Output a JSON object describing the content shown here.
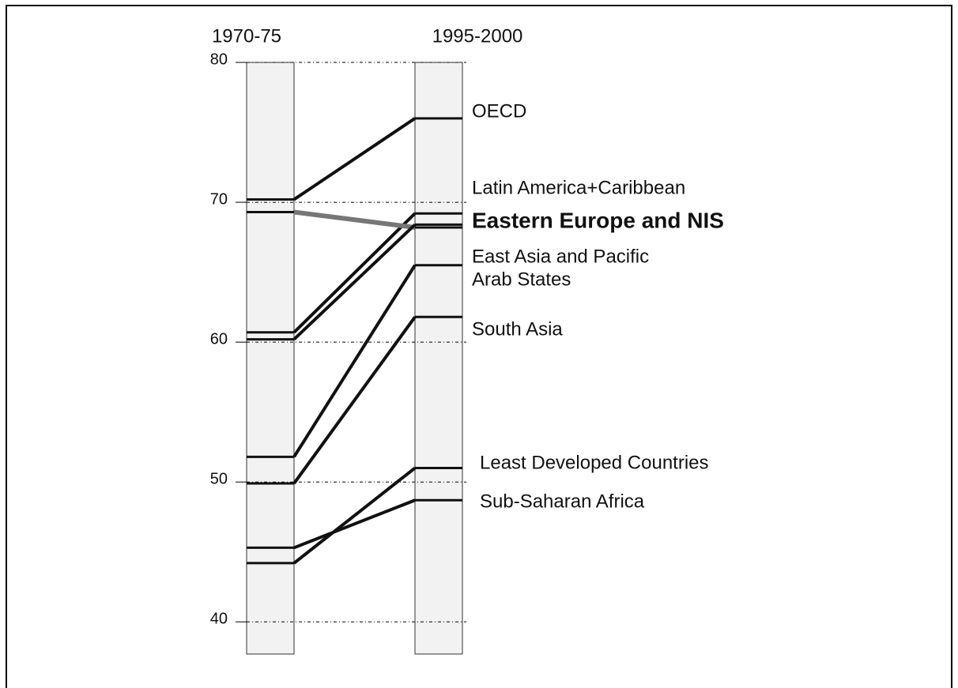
{
  "chart_data": {
    "type": "slope",
    "categories": [
      "1970-75",
      "1995-2000"
    ],
    "series": [
      {
        "name": "OECD",
        "color": "#111111",
        "values": [
          70.2,
          76.0
        ]
      },
      {
        "name": "Latin America+Caribbean",
        "color": "#111111",
        "values": [
          60.7,
          69.2
        ]
      },
      {
        "name": "Eastern Europe and NIS",
        "color": "#777777",
        "values": [
          69.3,
          68.2
        ]
      },
      {
        "name": "East Asia and Pacific",
        "color": "#111111",
        "values": [
          60.2,
          68.4
        ]
      },
      {
        "name": "Arab States",
        "color": "#111111",
        "values": [
          51.8,
          65.5
        ]
      },
      {
        "name": "South Asia",
        "color": "#111111",
        "values": [
          49.9,
          61.8
        ]
      },
      {
        "name": "Least Developed Countries",
        "color": "#111111",
        "values": [
          44.2,
          51.0
        ]
      },
      {
        "name": "Sub-Saharan Africa",
        "color": "#111111",
        "values": [
          45.3,
          48.7
        ]
      }
    ],
    "ylim": [
      37.7,
      80
    ],
    "yticks": [
      40,
      50,
      60,
      70,
      80
    ],
    "grid": true
  }
}
